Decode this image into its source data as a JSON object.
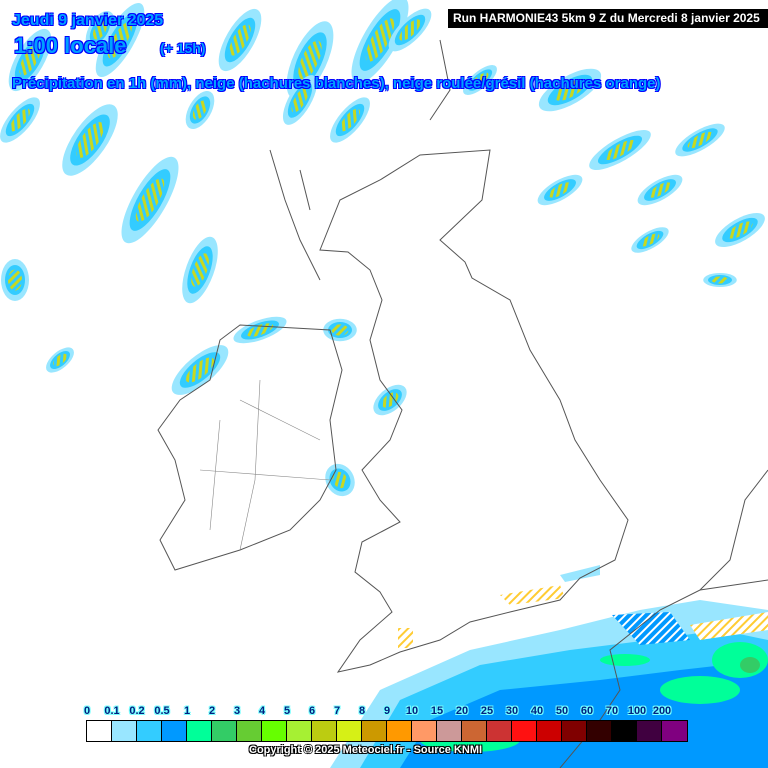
{
  "header": {
    "date": "Jeudi 9 janvier 2025",
    "time": "1:00 locale",
    "offset": "(+ 15h)",
    "subtitle": "Précipitation en 1h (mm), neige (hachures blanches), neige roulée/grésil (hachures orange)",
    "run": "Run HARMONIE43 5km 9 Z du Mercredi 8 janvier 2025"
  },
  "legend": {
    "labels": [
      "0",
      "0.1",
      "0.2",
      "0.5",
      "1",
      "2",
      "3",
      "4",
      "5",
      "6",
      "7",
      "8",
      "9",
      "10",
      "15",
      "20",
      "25",
      "30",
      "40",
      "50",
      "60",
      "70",
      "100",
      "200"
    ],
    "colors": [
      "#ffffff",
      "#99e6ff",
      "#33ccff",
      "#0099ff",
      "#00ff99",
      "#33cc66",
      "#66cc33",
      "#66ff00",
      "#a6f033",
      "#bccc11",
      "#d6f016",
      "#cc9900",
      "#ff9900",
      "#ff9966",
      "#cc9999",
      "#cc6633",
      "#cc3333",
      "#ff1111",
      "#cc0000",
      "#800000",
      "#330000",
      "#000000",
      "#400040",
      "#800080"
    ]
  },
  "copyright": "Copyright © 2025 Meteociel.fr - Source KNMI",
  "colors": {
    "title": "#00a0ff",
    "coast": "#555555",
    "snow_hatch": "#ffffff",
    "graupel_hatch": "#ffcc33"
  }
}
